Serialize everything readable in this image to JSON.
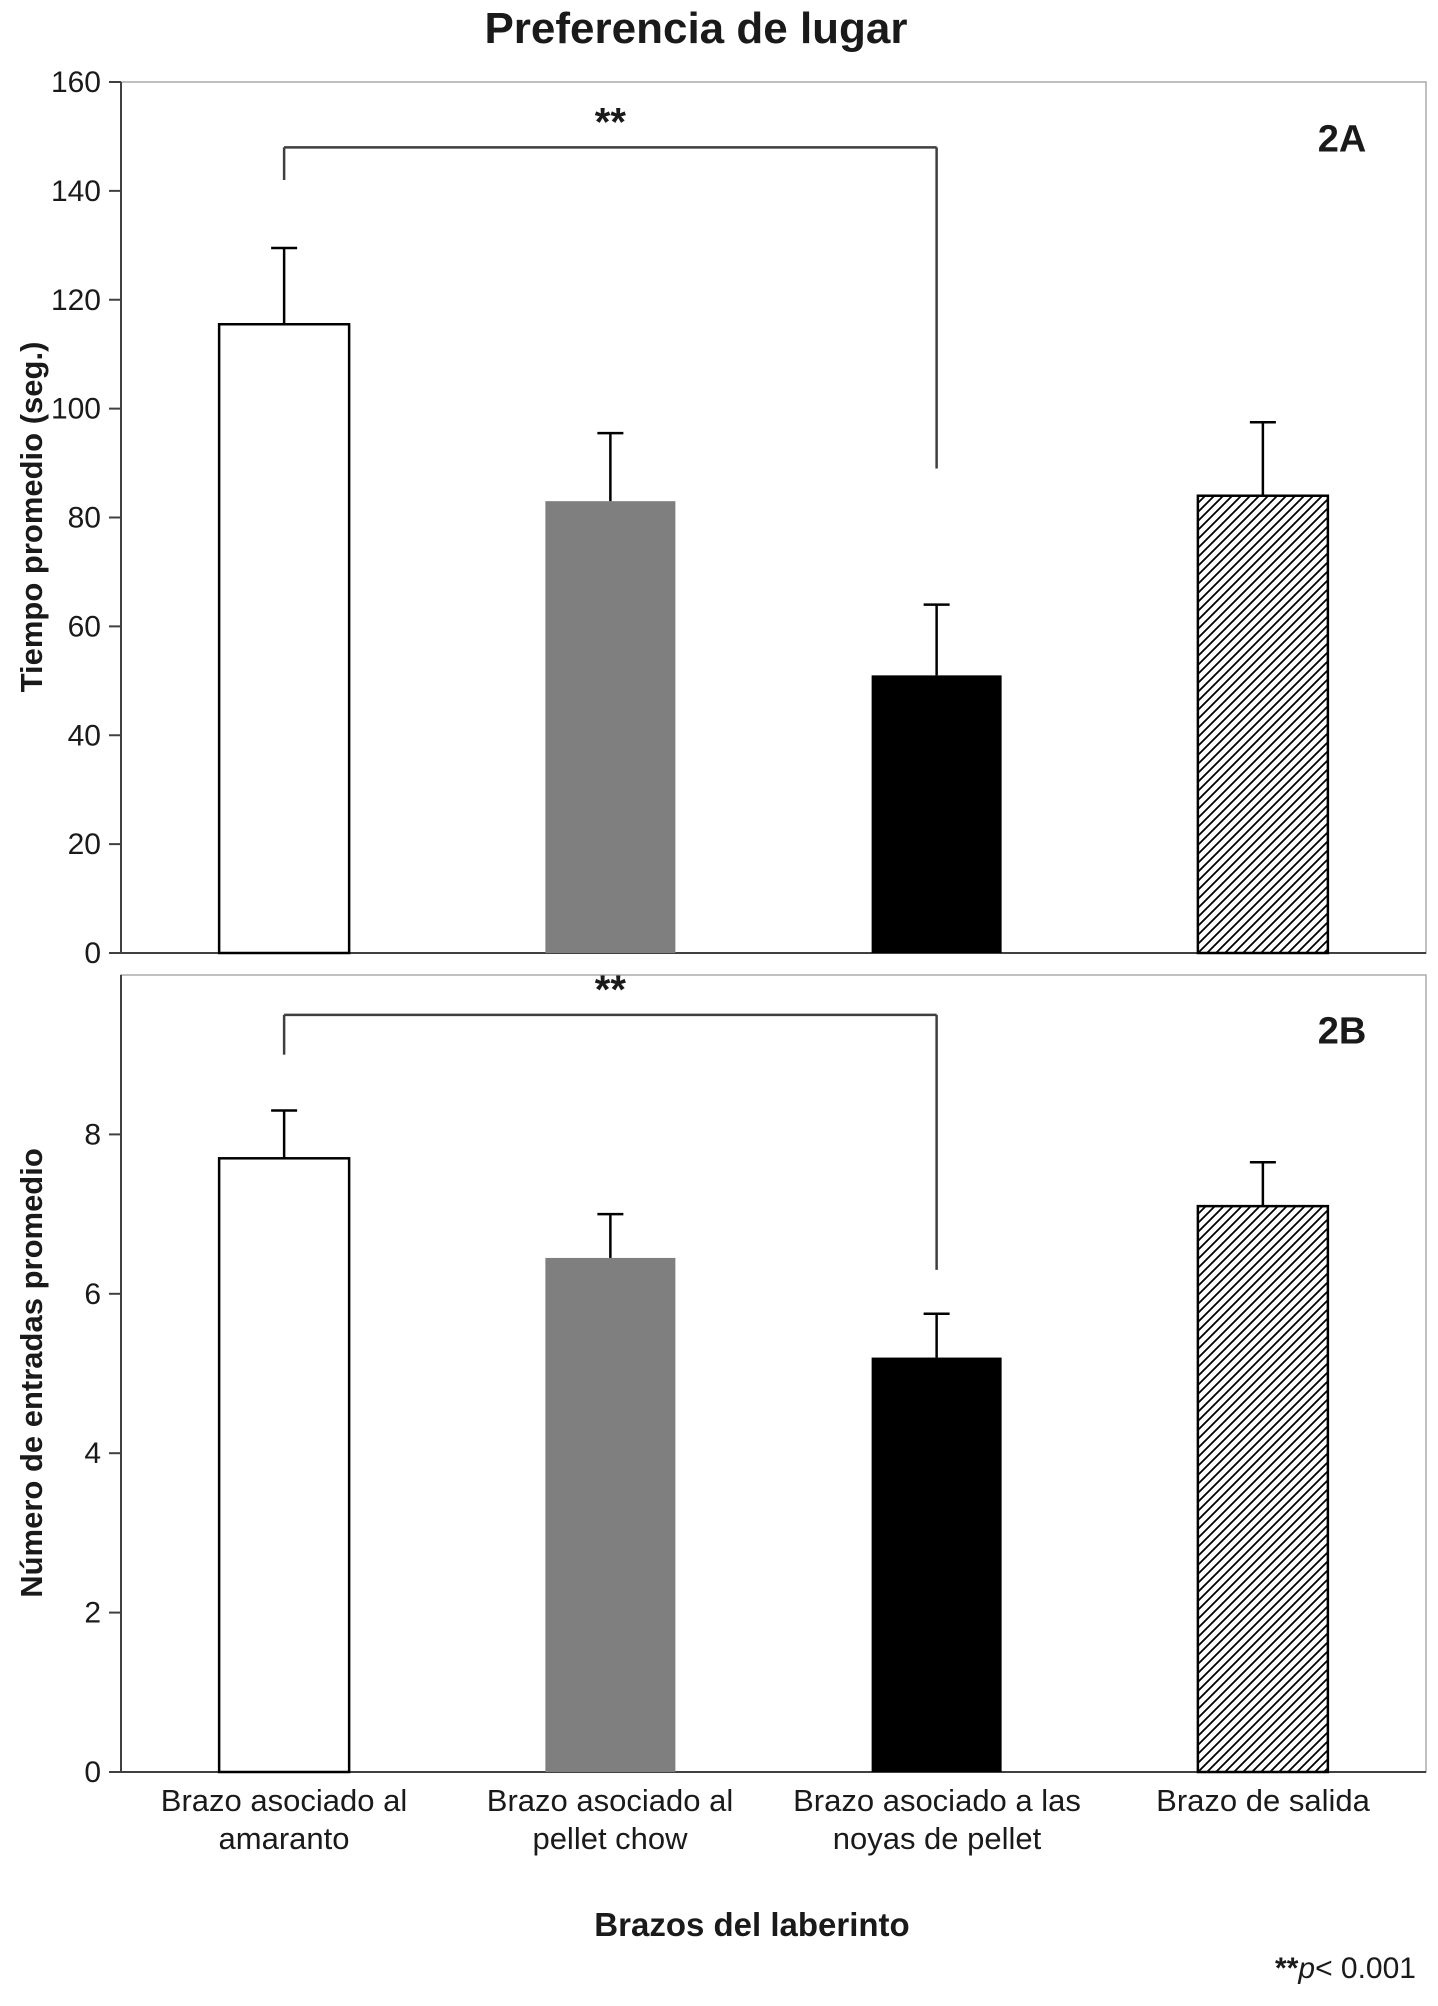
{
  "chart_data": {
    "type": "bar",
    "title": "Preferencia de lugar",
    "xlabel": "Brazos del laberinto",
    "categories": [
      "Brazo asociado al amaranto",
      "Brazo asociado al pellet chow",
      "Brazo asociado a las noyas de pellet",
      "Brazo de salida"
    ],
    "bar_style_names": [
      "white",
      "gray",
      "black",
      "hatched"
    ],
    "colors": {
      "white_bar": "#ffffff",
      "gray_bar": "#7f7f7f",
      "black_bar": "#000000",
      "bar_border": "#000000",
      "axis": "#404040",
      "box_border": "#ababab",
      "bracket": "#3f3f3f"
    },
    "legend": "none",
    "grid": false,
    "panels": [
      {
        "id": "2A",
        "ylabel": "Tiempo promedio (seg.)",
        "ylim": [
          0,
          160
        ],
        "yticks": [
          0,
          20,
          40,
          60,
          80,
          100,
          120,
          140,
          160
        ],
        "values": [
          115.5,
          83,
          51,
          84
        ],
        "errors": [
          14,
          12.5,
          13,
          13.5
        ],
        "bar_styles": [
          "white",
          "gray",
          "black",
          "hatched"
        ],
        "significance": {
          "label": "**",
          "from": 0,
          "to": 2,
          "y": 148,
          "left_drop": 6,
          "right_drop": 59
        }
      },
      {
        "id": "2B",
        "ylabel": "Número de entradas promedio",
        "ylim": [
          0,
          10
        ],
        "yticks": [
          0,
          2,
          4,
          6,
          8
        ],
        "values": [
          7.7,
          6.45,
          5.2,
          7.1
        ],
        "errors": [
          0.6,
          0.55,
          0.55,
          0.55
        ],
        "bar_styles": [
          "white",
          "gray",
          "black",
          "hatched"
        ],
        "significance": {
          "label": "**",
          "from": 0,
          "to": 2,
          "y": 9.5,
          "left_drop": 0.5,
          "right_drop": 3.2
        }
      }
    ],
    "annotation": {
      "stars": "**",
      "p": "p",
      "rest": "< 0.001"
    }
  }
}
